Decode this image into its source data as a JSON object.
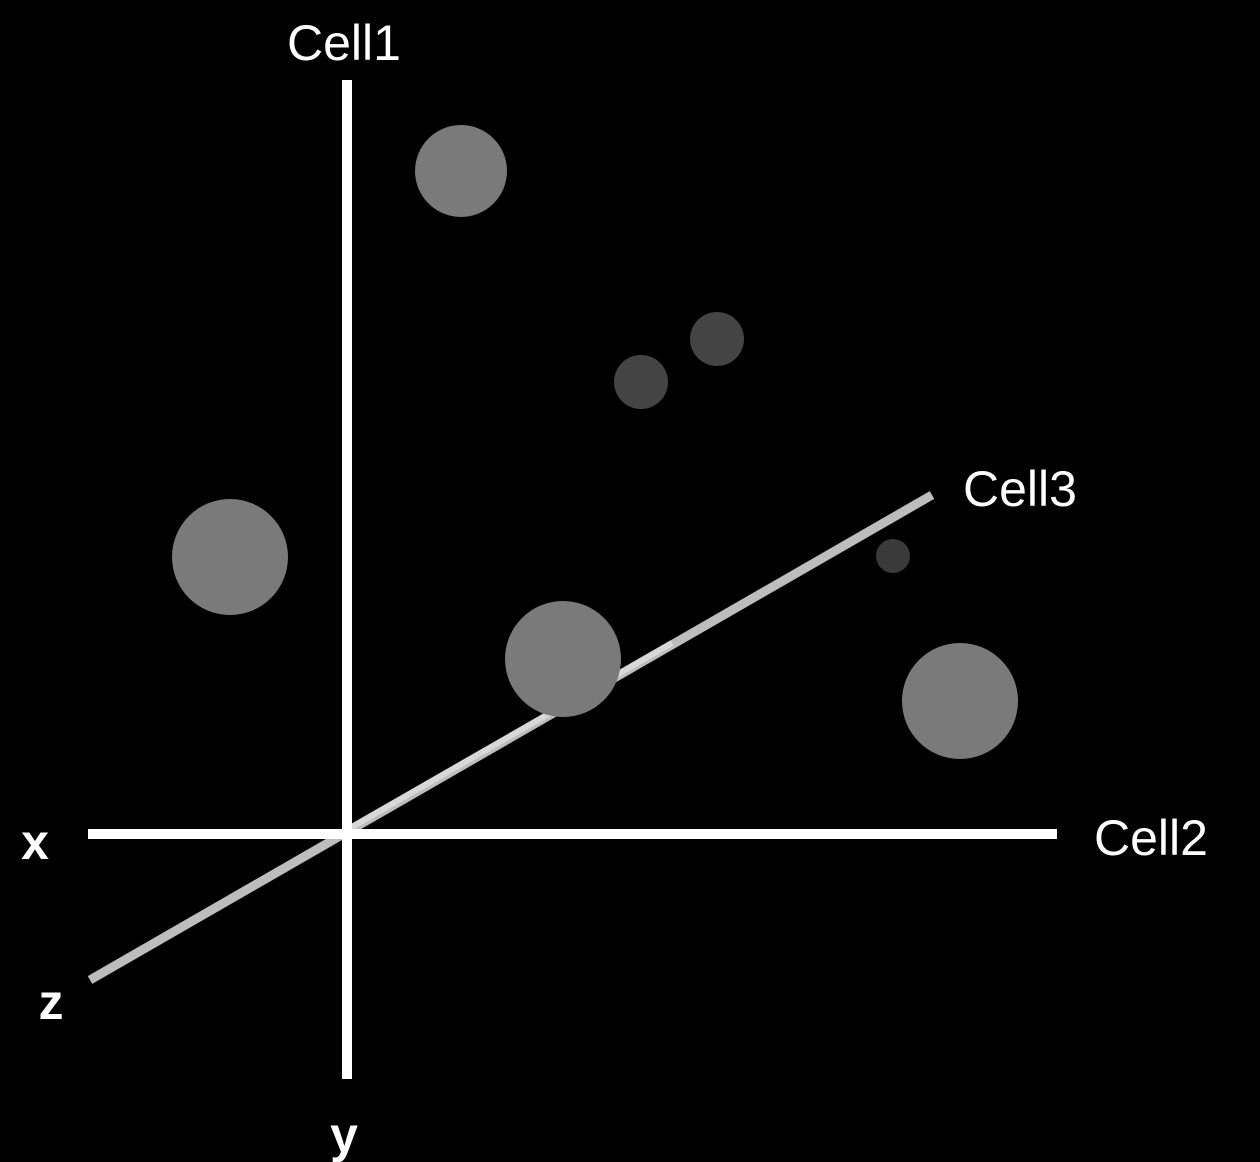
{
  "labels": {
    "cell1": "Cell1",
    "cell2": "Cell2",
    "cell3": "Cell3",
    "x": "x",
    "y": "y",
    "z": "z"
  },
  "colors": {
    "background": "#000000",
    "axis_main": "#ffffff",
    "axis_depth": "#bdbdbd",
    "point_near": "#7a7a7a",
    "point_far": "#444444",
    "point_farthest": "#3a3a3a"
  }
}
